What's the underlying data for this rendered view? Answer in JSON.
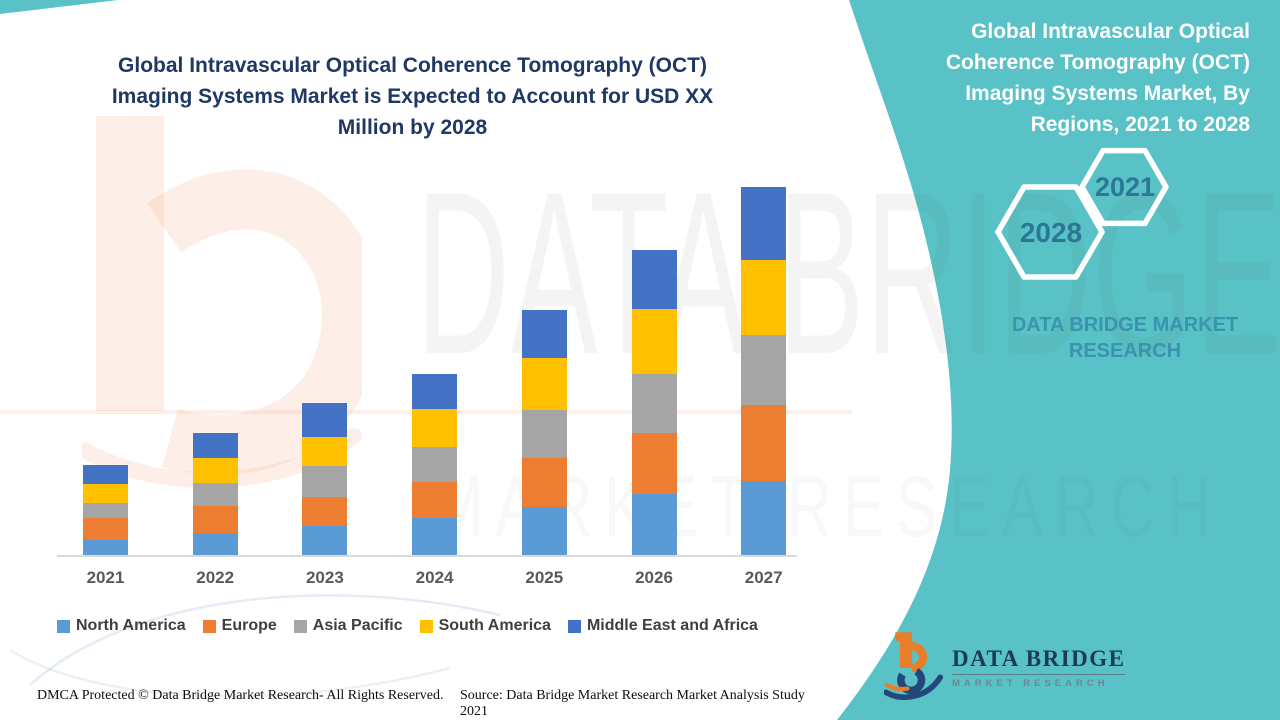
{
  "colors": {
    "teal_panel": "#58C2C6",
    "title_text": "#1F3864",
    "axis_label": "#595959",
    "legend_label": "#3F3F3F",
    "axis_line": "#D9D9D9",
    "hexagon_number": "#2B7795",
    "panel_brand_text": "#3B94AD",
    "logo_navy": "#24477A",
    "logo_orange": "#E87D2B"
  },
  "left_title": {
    "lines": [
      "Global Intravascular Optical Coherence Tomography (OCT)",
      "Imaging Systems Market is Expected to Account for USD XX",
      "Million by 2028"
    ]
  },
  "chart_data": {
    "type": "bar",
    "stacked": true,
    "title": "Global Intravascular Optical Coherence Tomography (OCT) Imaging Systems Market is Expected to Account for USD XX Million by 2028",
    "categories": [
      "2021",
      "2022",
      "2023",
      "2024",
      "2025",
      "2026",
      "2027"
    ],
    "series": [
      {
        "name": "North America",
        "color": "#5B9BD5",
        "values": [
          15,
          22,
          29,
          37,
          48,
          61,
          74
        ]
      },
      {
        "name": "Europe",
        "color": "#ED7D31",
        "values": [
          22,
          27,
          29,
          36,
          49,
          61,
          76
        ]
      },
      {
        "name": "Asia Pacific",
        "color": "#A5A5A5",
        "values": [
          15,
          23,
          31,
          35,
          48,
          59,
          70
        ]
      },
      {
        "name": "South America",
        "color": "#FFC000",
        "values": [
          19,
          25,
          29,
          38,
          52,
          65,
          75
        ]
      },
      {
        "name": "Middle East and Africa",
        "color": "#4472C4",
        "values": [
          19,
          25,
          34,
          35,
          48,
          59,
          73
        ]
      }
    ],
    "xlabel": "",
    "ylabel": "",
    "y_axis_shown": false,
    "value_note": "No y-axis values shown; market sized as USD XX Million. Values are relative estimates from bar heights.",
    "legend_position": "bottom"
  },
  "footer": {
    "dmca": "DMCA Protected © Data Bridge Market Research- All Rights Reserved.",
    "source": "Source: Data Bridge Market Research Market Analysis Study 2021"
  },
  "right_panel": {
    "title_lines": [
      "Global Intravascular Optical",
      "Coherence Tomography (OCT)",
      "Imaging Systems Market, By",
      "Regions, 2021 to 2028"
    ],
    "hexagon_small": "2021",
    "hexagon_large": "2028",
    "brand_lines": [
      "DATA BRIDGE MARKET",
      "RESEARCH"
    ]
  },
  "logo": {
    "title": "DATA BRIDGE",
    "subtitle": "MARKET RESEARCH"
  },
  "watermarks": {
    "big_text": "DATA BRIDGE",
    "secondary_text": "MARKET RESEARCH"
  }
}
